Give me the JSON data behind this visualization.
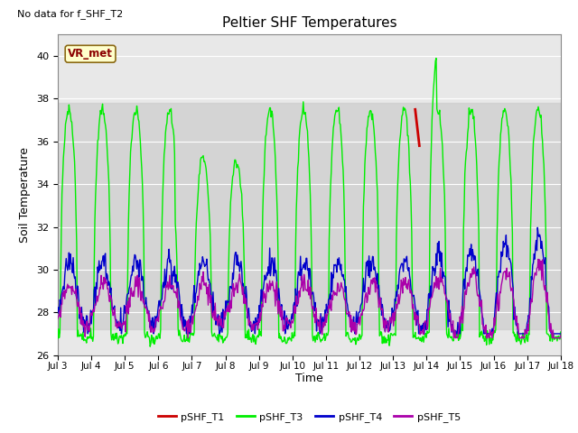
{
  "title": "Peltier SHF Temperatures",
  "no_data_text": "No data for f_SHF_T2",
  "ylabel": "Soil Temperature",
  "xlabel": "Time",
  "xlim": [
    0,
    15
  ],
  "ylim": [
    26,
    41
  ],
  "yticks": [
    26,
    28,
    30,
    32,
    34,
    36,
    38,
    40
  ],
  "xtick_labels": [
    "Jul 3",
    "Jul 4",
    "Jul 5",
    "Jul 6",
    "Jul 7",
    "Jul 8",
    "Jul 9",
    "Jul 10",
    "Jul 11",
    "Jul 12",
    "Jul 13",
    "Jul 14",
    "Jul 15",
    "Jul 16",
    "Jul 17",
    "Jul 18"
  ],
  "xtick_positions": [
    0,
    1,
    2,
    3,
    4,
    5,
    6,
    7,
    8,
    9,
    10,
    11,
    12,
    13,
    14,
    15
  ],
  "vr_met_label": "VR_met",
  "bg_band_low": 27.2,
  "bg_band_high": 37.8,
  "colors": {
    "pSHF_T1": "#cc0000",
    "pSHF_T3": "#00ee00",
    "pSHF_T4": "#0000cc",
    "pSHF_T5": "#aa00aa"
  },
  "legend_labels": [
    "pSHF_T1",
    "pSHF_T3",
    "pSHF_T4",
    "pSHF_T5"
  ],
  "background_color": "#ffffff",
  "plot_bg_color": "#e8e8e8"
}
